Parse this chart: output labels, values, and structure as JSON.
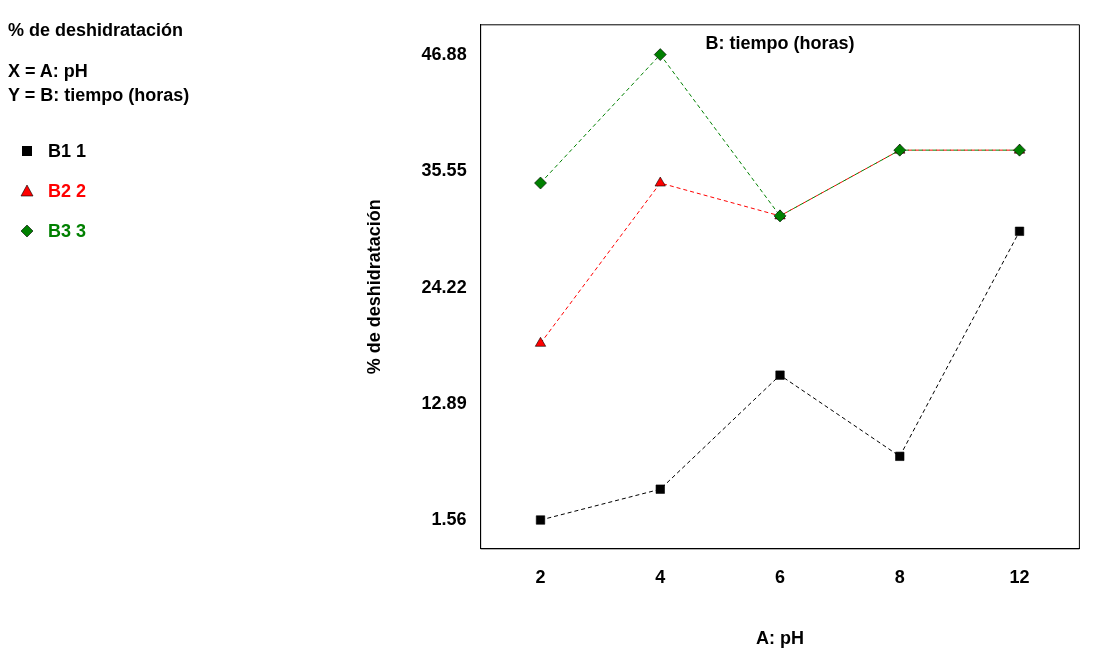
{
  "chart_data": {
    "type": "line",
    "title": "% de deshidratación",
    "subtitle": "B: tiempo (horas)",
    "xlabel": "A: pH",
    "ylabel": "% de deshidratación",
    "annotations": [
      "X = A: pH",
      "Y = B: tiempo (horas)"
    ],
    "categories": [
      "2",
      "4",
      "6",
      "8",
      "12"
    ],
    "series": [
      {
        "name": "B1 1",
        "color": "#000000",
        "marker": "square",
        "values": [
          1.6,
          4.6,
          15.7,
          7.8,
          29.7
        ]
      },
      {
        "name": "B2 2",
        "color": "#ff0000",
        "marker": "triangle",
        "values": [
          18.8,
          34.4,
          31.2,
          37.6,
          37.6
        ]
      },
      {
        "name": "B3 3",
        "color": "#008000",
        "marker": "diamond",
        "values": [
          34.4,
          46.9,
          31.2,
          37.6,
          37.6
        ]
      }
    ],
    "ylim": [
      -1.2,
      49.8
    ],
    "yticks": [
      1.56,
      12.89,
      24.22,
      35.55,
      46.88
    ],
    "grid": false,
    "legend": "left",
    "line_style": "dashed"
  }
}
